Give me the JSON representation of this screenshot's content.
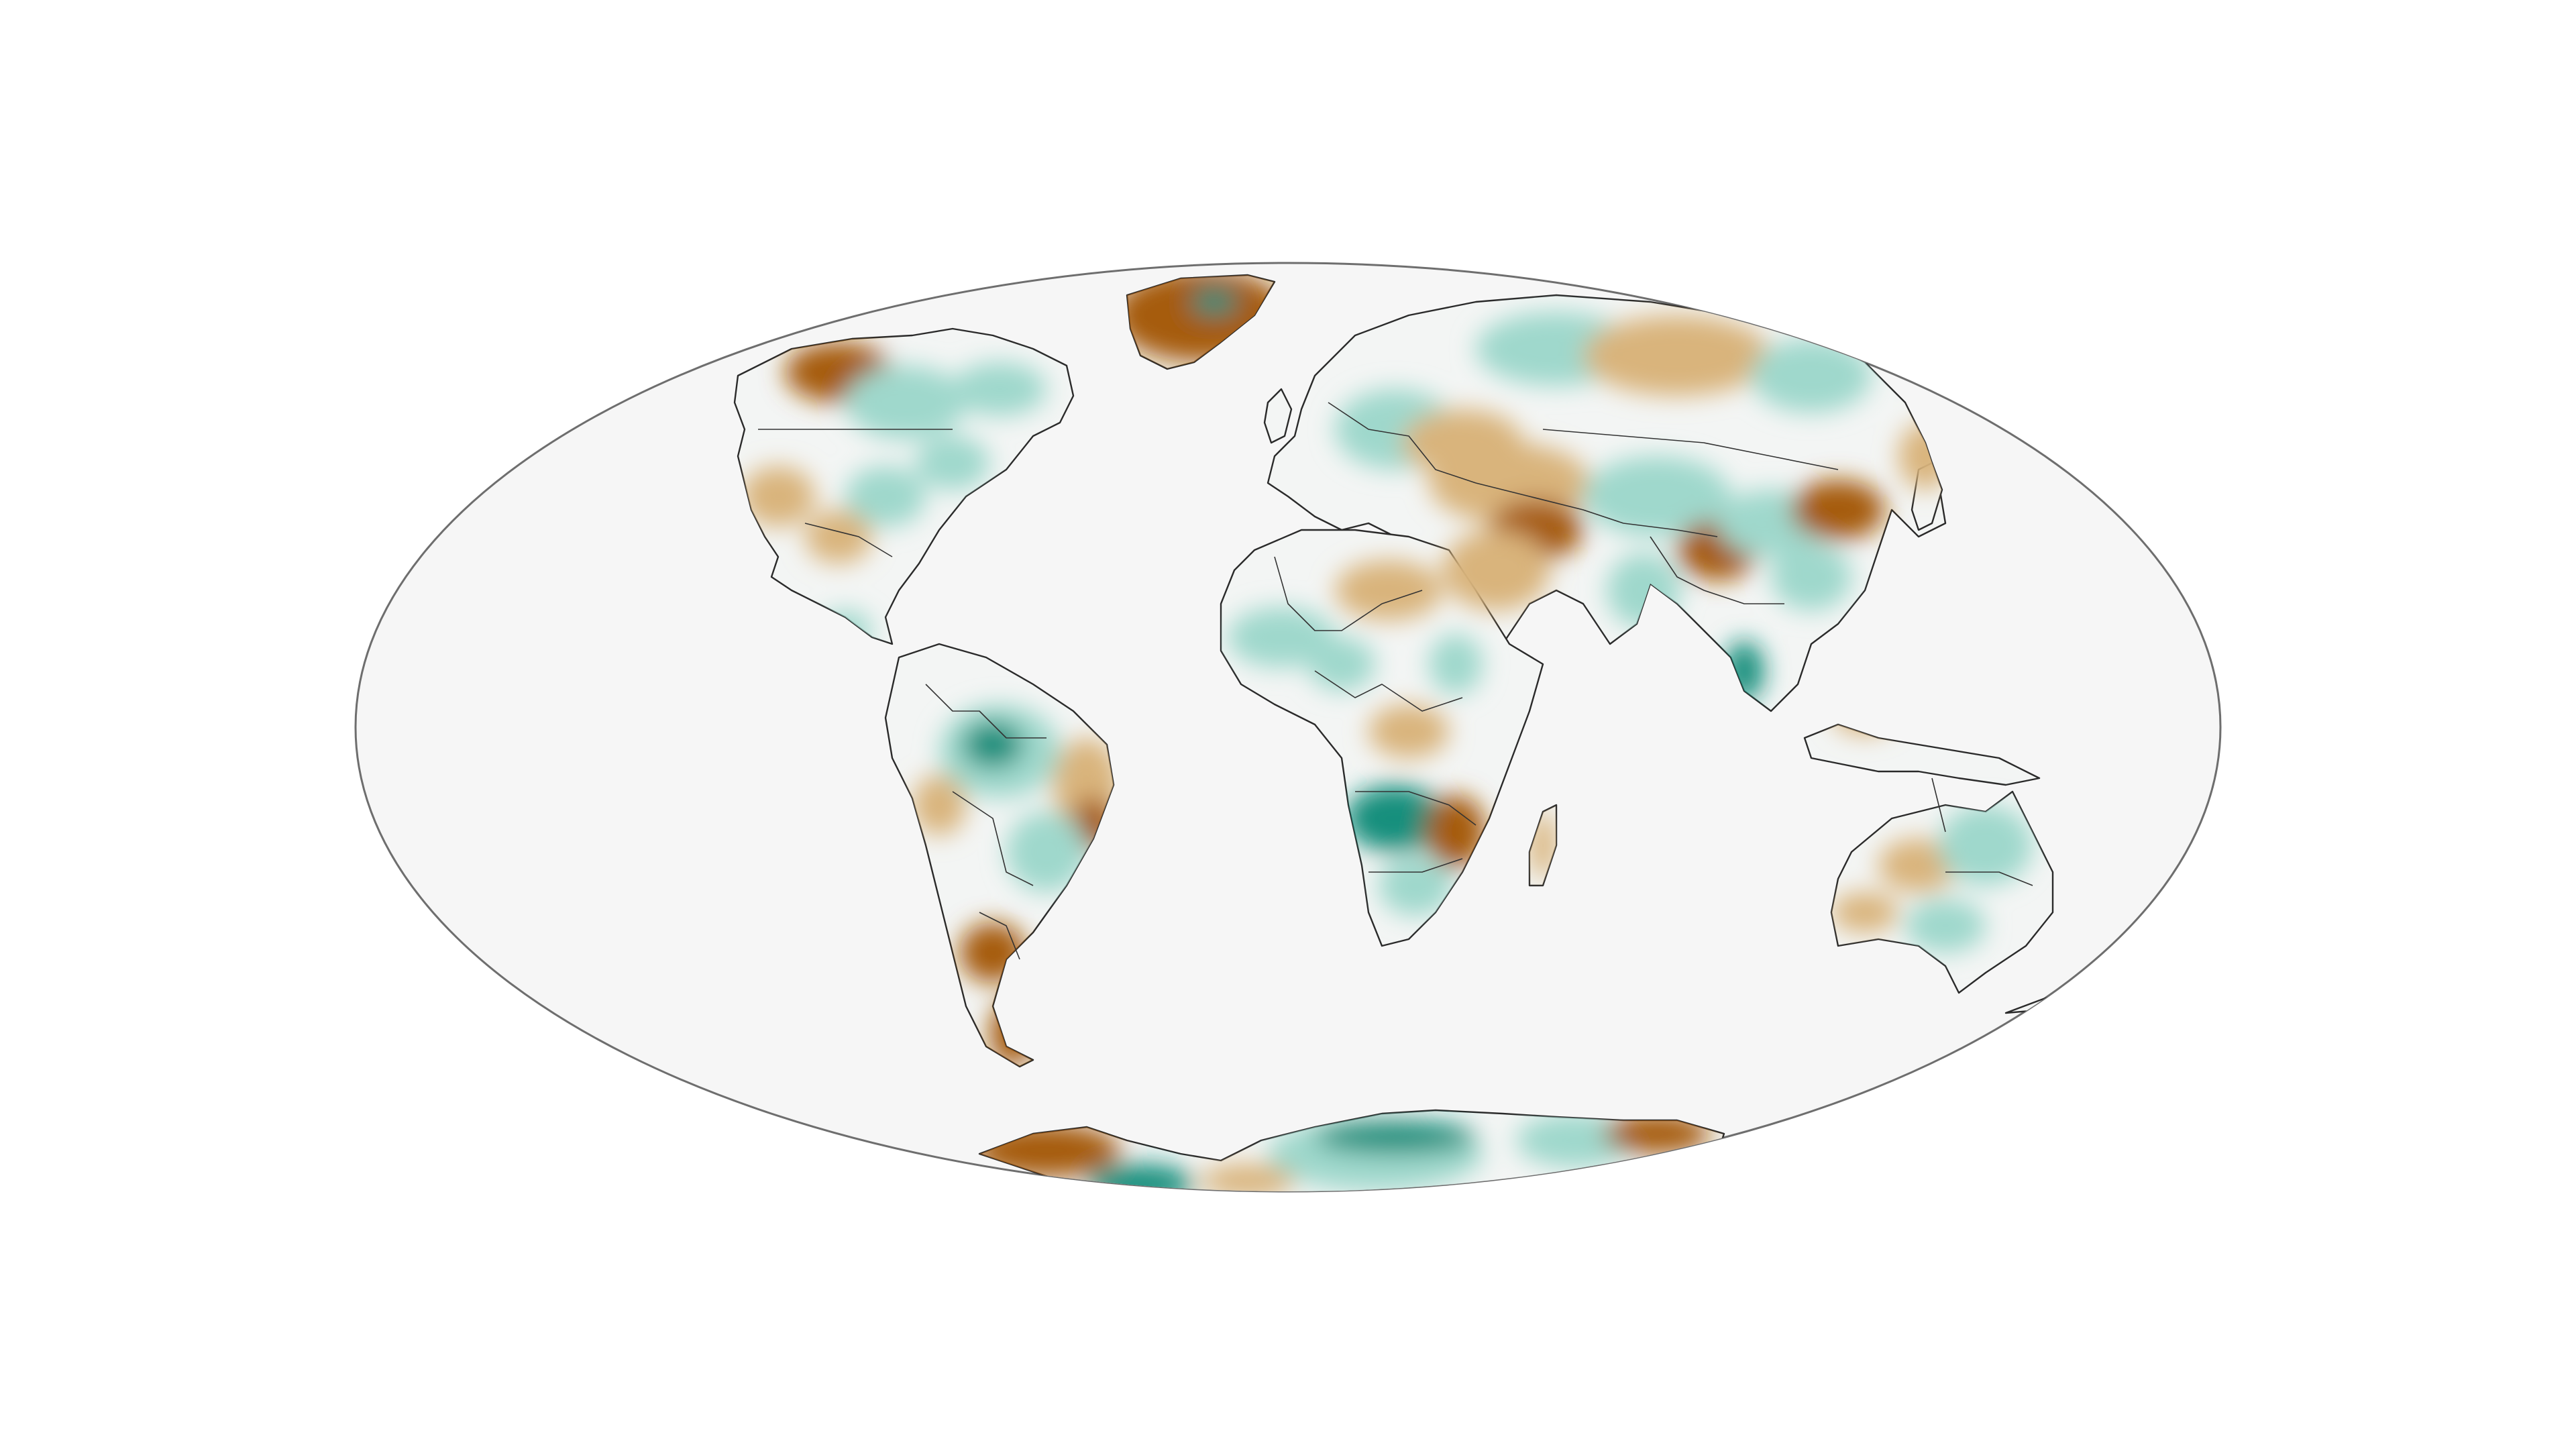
{
  "map": {
    "projection": "mollweide",
    "ocean_color": "#f6f6f6",
    "outline_color": "#6e6e6e",
    "land_base_color": "#f3f5f4",
    "border_color": "#333333",
    "palette": {
      "strong_brown": "#a65c10",
      "light_brown": "#d9b47c",
      "neutral": "#f4f4f2",
      "light_teal": "#9fd8cc",
      "strong_teal": "#168f7d"
    }
  }
}
